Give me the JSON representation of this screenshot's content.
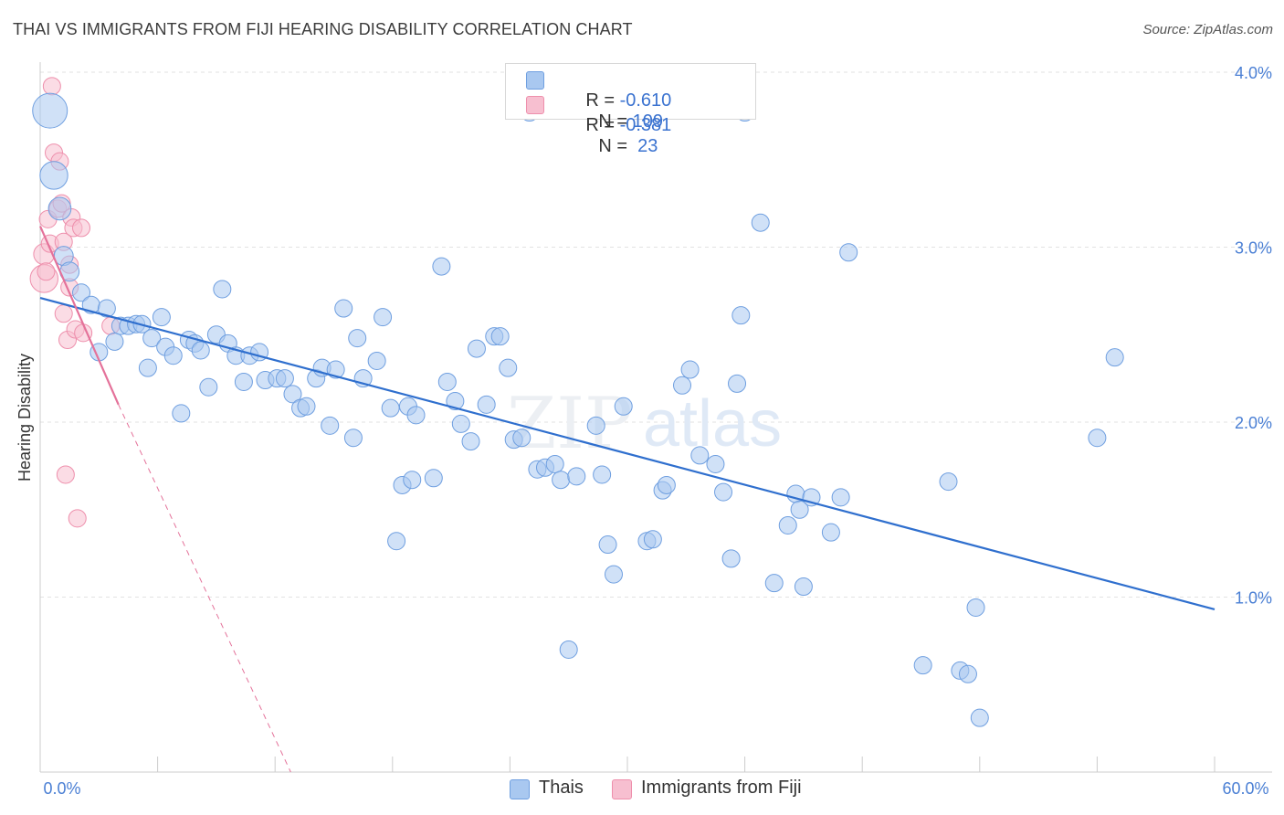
{
  "title": "THAI VS IMMIGRANTS FROM FIJI HEARING DISABILITY CORRELATION CHART",
  "source": "Source: ZipAtlas.com",
  "watermark": {
    "zip": "ZIP",
    "atlas": "atlas"
  },
  "legend": {
    "rows": [
      {
        "r_label": "R = ",
        "r_value": "-0.610",
        "n_label": "N = ",
        "n_value": "109",
        "color": "#a9c8f0",
        "border": "#6f9fe0"
      },
      {
        "r_label": "R = ",
        "r_value": "-0.381",
        "n_label": "N = ",
        "n_value": " 23",
        "color": "#f7bfd0",
        "border": "#ee8fac"
      }
    ]
  },
  "bottom_legend": {
    "items": [
      {
        "label": "Thais",
        "color": "#a9c8f0",
        "border": "#6f9fe0"
      },
      {
        "label": "Immigrants from Fiji",
        "color": "#f7bfd0",
        "border": "#ee8fac"
      }
    ]
  },
  "chart_data": {
    "type": "scatter",
    "title": "THAI VS IMMIGRANTS FROM FIJI HEARING DISABILITY CORRELATION CHART",
    "xlabel": "",
    "ylabel": "Hearing Disability",
    "xlim": [
      0,
      60
    ],
    "ylim": [
      0.0,
      4.0
    ],
    "x_tick_labels": [
      "0.0%",
      "60.0%"
    ],
    "y_ticks": [
      1.0,
      2.0,
      3.0,
      4.0
    ],
    "y_tick_labels": [
      "1.0%",
      "2.0%",
      "3.0%",
      "4.0%"
    ],
    "grid": true,
    "legend_position": "top-center",
    "colors": {
      "thais": "#a9c8f0",
      "thais_border": "#6f9fe0",
      "thais_line": "#2f6fce",
      "fiji": "#f7bfd0",
      "fiji_border": "#ee8fac",
      "fiji_line": "#e4729a"
    },
    "series": [
      {
        "name": "Thais",
        "trend": {
          "x0": 0,
          "y0": 2.71,
          "x1": 60,
          "y1": 0.93
        },
        "points": [
          [
            0.5,
            3.78,
            2.0
          ],
          [
            0.7,
            3.41,
            1.6
          ],
          [
            1.0,
            3.22,
            1.3
          ],
          [
            1.2,
            2.95,
            1.1
          ],
          [
            1.5,
            2.86,
            1.1
          ],
          [
            2.1,
            2.74,
            1.0
          ],
          [
            2.6,
            2.67,
            1.0
          ],
          [
            3.4,
            2.65,
            1.0
          ],
          [
            3.0,
            2.4,
            1.0
          ],
          [
            3.8,
            2.46,
            1.0
          ],
          [
            4.1,
            2.55,
            1.0
          ],
          [
            4.5,
            2.55,
            1.0
          ],
          [
            4.9,
            2.56,
            1.0
          ],
          [
            5.2,
            2.56,
            1.0
          ],
          [
            6.2,
            2.6,
            1.0
          ],
          [
            5.5,
            2.31,
            1.0
          ],
          [
            5.7,
            2.48,
            1.0
          ],
          [
            6.4,
            2.43,
            1.0
          ],
          [
            6.8,
            2.38,
            1.0
          ],
          [
            7.2,
            2.05,
            1.0
          ],
          [
            7.6,
            2.47,
            1.0
          ],
          [
            7.9,
            2.45,
            1.0
          ],
          [
            8.2,
            2.41,
            1.0
          ],
          [
            8.6,
            2.2,
            1.0
          ],
          [
            9.0,
            2.5,
            1.0
          ],
          [
            9.3,
            2.76,
            1.0
          ],
          [
            9.6,
            2.45,
            1.0
          ],
          [
            10.0,
            2.38,
            1.0
          ],
          [
            10.4,
            2.23,
            1.0
          ],
          [
            10.7,
            2.38,
            1.0
          ],
          [
            11.2,
            2.4,
            1.0
          ],
          [
            11.5,
            2.24,
            1.0
          ],
          [
            12.1,
            2.25,
            1.0
          ],
          [
            12.5,
            2.25,
            1.0
          ],
          [
            12.9,
            2.16,
            1.0
          ],
          [
            13.3,
            2.08,
            1.0
          ],
          [
            13.6,
            2.09,
            1.0
          ],
          [
            14.1,
            2.25,
            1.0
          ],
          [
            14.4,
            2.31,
            1.0
          ],
          [
            14.8,
            1.98,
            1.0
          ],
          [
            15.1,
            2.3,
            1.0
          ],
          [
            15.5,
            2.65,
            1.0
          ],
          [
            16.0,
            1.91,
            1.0
          ],
          [
            16.2,
            2.48,
            1.0
          ],
          [
            16.5,
            2.25,
            1.0
          ],
          [
            17.2,
            2.35,
            1.0
          ],
          [
            17.5,
            2.6,
            1.0
          ],
          [
            17.9,
            2.08,
            1.0
          ],
          [
            18.2,
            1.32,
            1.0
          ],
          [
            18.5,
            1.64,
            1.0
          ],
          [
            18.8,
            2.09,
            1.0
          ],
          [
            19.2,
            2.04,
            1.0
          ],
          [
            19.0,
            1.67,
            1.0
          ],
          [
            20.1,
            1.68,
            1.0
          ],
          [
            20.5,
            2.89,
            1.0
          ],
          [
            20.8,
            2.23,
            1.0
          ],
          [
            21.2,
            2.12,
            1.0
          ],
          [
            21.5,
            1.99,
            1.0
          ],
          [
            22.0,
            1.89,
            1.0
          ],
          [
            22.3,
            2.42,
            1.0
          ],
          [
            22.8,
            2.1,
            1.0
          ],
          [
            23.2,
            2.49,
            1.0
          ],
          [
            23.5,
            2.49,
            1.0
          ],
          [
            23.9,
            2.31,
            1.0
          ],
          [
            24.2,
            1.9,
            1.0
          ],
          [
            24.6,
            1.91,
            1.0
          ],
          [
            25.0,
            3.77,
            1.0
          ],
          [
            25.4,
            1.73,
            1.0
          ],
          [
            25.8,
            1.74,
            1.0
          ],
          [
            26.3,
            1.76,
            1.0
          ],
          [
            26.6,
            1.67,
            1.0
          ],
          [
            27.0,
            0.7,
            1.0
          ],
          [
            27.4,
            1.69,
            1.0
          ],
          [
            28.4,
            1.98,
            1.0
          ],
          [
            28.7,
            1.7,
            1.0
          ],
          [
            29.0,
            1.3,
            1.0
          ],
          [
            29.3,
            1.13,
            1.0
          ],
          [
            29.8,
            2.09,
            1.0
          ],
          [
            31.0,
            1.32,
            1.0
          ],
          [
            31.3,
            1.33,
            1.0
          ],
          [
            31.8,
            1.61,
            1.0
          ],
          [
            32.0,
            1.64,
            1.0
          ],
          [
            32.8,
            2.21,
            1.0
          ],
          [
            33.2,
            2.3,
            1.0
          ],
          [
            33.7,
            1.81,
            1.0
          ],
          [
            34.5,
            1.76,
            1.0
          ],
          [
            34.9,
            1.6,
            1.0
          ],
          [
            35.3,
            1.22,
            1.0
          ],
          [
            36.0,
            3.77,
            1.0
          ],
          [
            35.8,
            2.61,
            1.0
          ],
          [
            35.6,
            2.22,
            1.0
          ],
          [
            36.8,
            3.14,
            1.0
          ],
          [
            37.5,
            1.08,
            1.0
          ],
          [
            38.2,
            1.41,
            1.0
          ],
          [
            38.6,
            1.59,
            1.0
          ],
          [
            38.8,
            1.5,
            1.0
          ],
          [
            39.0,
            1.06,
            1.0
          ],
          [
            39.4,
            1.57,
            1.0
          ],
          [
            40.4,
            1.37,
            1.0
          ],
          [
            40.9,
            1.57,
            1.0
          ],
          [
            41.3,
            2.97,
            1.0
          ],
          [
            45.1,
            0.61,
            1.0
          ],
          [
            46.4,
            1.66,
            1.0
          ],
          [
            47.0,
            0.58,
            1.0
          ],
          [
            47.4,
            0.56,
            1.0
          ],
          [
            47.8,
            0.94,
            1.0
          ],
          [
            48.0,
            0.31,
            1.0
          ],
          [
            54.0,
            1.91,
            1.0
          ],
          [
            54.9,
            2.37,
            1.0
          ]
        ]
      },
      {
        "name": "Immigrants from Fiji",
        "trend": {
          "x0": 0,
          "y0": 3.12,
          "x1": 4.0,
          "y1": 2.1,
          "dash_to_x": 12.8,
          "dash_to_y": 0.0
        },
        "points": [
          [
            0.2,
            2.82,
            1.6
          ],
          [
            0.2,
            2.96,
            1.2
          ],
          [
            0.3,
            2.86,
            1.0
          ],
          [
            0.4,
            3.16,
            1.0
          ],
          [
            0.5,
            3.02,
            1.0
          ],
          [
            0.6,
            3.92,
            1.0
          ],
          [
            0.7,
            3.54,
            1.0
          ],
          [
            0.9,
            3.22,
            1.0
          ],
          [
            1.0,
            3.49,
            1.0
          ],
          [
            1.1,
            3.25,
            1.0
          ],
          [
            1.2,
            2.62,
            1.0
          ],
          [
            1.2,
            3.03,
            1.0
          ],
          [
            1.3,
            1.7,
            1.0
          ],
          [
            1.4,
            2.47,
            1.0
          ],
          [
            1.5,
            2.9,
            1.0
          ],
          [
            1.6,
            3.17,
            1.0
          ],
          [
            1.7,
            3.11,
            1.0
          ],
          [
            1.5,
            2.77,
            1.0
          ],
          [
            1.8,
            2.53,
            1.0
          ],
          [
            1.9,
            1.45,
            1.0
          ],
          [
            2.1,
            3.11,
            1.0
          ],
          [
            2.2,
            2.51,
            1.0
          ],
          [
            3.6,
            2.55,
            1.0
          ]
        ]
      }
    ]
  }
}
